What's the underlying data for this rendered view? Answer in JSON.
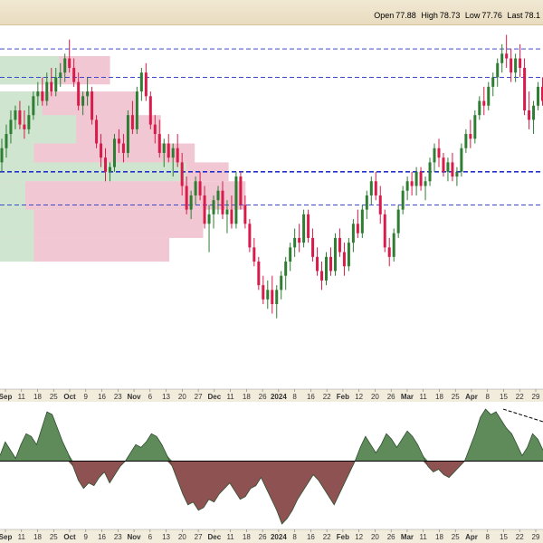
{
  "ohlc": {
    "open_label": "Open",
    "open": "77.88",
    "high_label": "High",
    "high": "78.73",
    "low_label": "Low",
    "low": "77.76",
    "last_label": "Last",
    "last": "78.1"
  },
  "colors": {
    "up": "#2e7d32",
    "down": "#d81b4a",
    "vbp_up": "#cfe5cf",
    "vbp_down": "#f1c7d3",
    "hline": "#2233cc",
    "osc_pos": "#5f8b5b",
    "osc_neg": "#8e5252",
    "header_bg": "#eee3c8"
  },
  "chart_data": [
    {
      "type": "candlestick",
      "title": "",
      "y_range": [
        73.5,
        81.2
      ],
      "x_tick_labels": [
        "Sep",
        "11",
        "18",
        "25",
        "Oct",
        "9",
        "16",
        "23",
        "Nov",
        "6",
        "13",
        "20",
        "27",
        "Dec",
        "11",
        "18",
        "26",
        "2024",
        "8",
        "16",
        "22",
        "Feb",
        "12",
        "20",
        "26",
        "Mar",
        "11",
        "18",
        "25",
        "Apr",
        "8",
        "15",
        "22",
        "29"
      ],
      "horizontal_lines": [
        80.7,
        80.1,
        78.1,
        77.4
      ],
      "volume_by_price": [
        {
          "price_low": 79.95,
          "price_high": 80.55,
          "up": 0.7,
          "down": 1.3
        },
        {
          "price_low": 79.2,
          "price_high": 79.8,
          "up": 0.5,
          "down": 1.6
        },
        {
          "price_low": 78.7,
          "price_high": 79.3,
          "up": 0.9,
          "down": 1.9
        },
        {
          "price_low": 78.2,
          "price_high": 78.7,
          "up": 0.4,
          "down": 2.3
        },
        {
          "price_low": 77.9,
          "price_high": 78.3,
          "up": 2.2,
          "down": 2.7
        },
        {
          "price_low": 77.3,
          "price_high": 77.9,
          "up": 0.3,
          "down": 2.9
        },
        {
          "price_low": 76.7,
          "price_high": 77.3,
          "up": 0.4,
          "down": 2.4
        },
        {
          "price_low": 76.2,
          "price_high": 76.7,
          "up": 0.4,
          "down": 2.0
        }
      ],
      "candles": [
        {
          "o": 78.3,
          "h": 78.8,
          "l": 78.1,
          "c": 78.6
        },
        {
          "o": 78.6,
          "h": 79.1,
          "l": 78.4,
          "c": 78.9
        },
        {
          "o": 78.9,
          "h": 79.4,
          "l": 78.7,
          "c": 79.2
        },
        {
          "o": 79.2,
          "h": 79.5,
          "l": 79.0,
          "c": 79.4
        },
        {
          "o": 79.4,
          "h": 79.6,
          "l": 79.0,
          "c": 79.1
        },
        {
          "o": 79.1,
          "h": 79.4,
          "l": 78.8,
          "c": 79.0
        },
        {
          "o": 79.0,
          "h": 79.5,
          "l": 78.9,
          "c": 79.3
        },
        {
          "o": 79.3,
          "h": 79.8,
          "l": 79.2,
          "c": 79.7
        },
        {
          "o": 79.7,
          "h": 80.0,
          "l": 79.5,
          "c": 79.8
        },
        {
          "o": 79.8,
          "h": 80.1,
          "l": 79.5,
          "c": 79.6
        },
        {
          "o": 79.6,
          "h": 80.2,
          "l": 79.5,
          "c": 80.0
        },
        {
          "o": 80.0,
          "h": 80.3,
          "l": 79.7,
          "c": 79.8
        },
        {
          "o": 79.8,
          "h": 80.3,
          "l": 79.7,
          "c": 80.1
        },
        {
          "o": 80.1,
          "h": 80.4,
          "l": 79.9,
          "c": 80.2
        },
        {
          "o": 80.2,
          "h": 80.6,
          "l": 80.0,
          "c": 80.5
        },
        {
          "o": 80.5,
          "h": 80.9,
          "l": 80.2,
          "c": 80.3
        },
        {
          "o": 80.3,
          "h": 80.5,
          "l": 79.9,
          "c": 80.0
        },
        {
          "o": 80.0,
          "h": 80.2,
          "l": 79.4,
          "c": 79.5
        },
        {
          "o": 79.5,
          "h": 79.8,
          "l": 79.3,
          "c": 79.7
        },
        {
          "o": 79.7,
          "h": 80.1,
          "l": 79.5,
          "c": 79.8
        },
        {
          "o": 79.8,
          "h": 79.9,
          "l": 79.1,
          "c": 79.2
        },
        {
          "o": 79.2,
          "h": 79.3,
          "l": 78.6,
          "c": 78.7
        },
        {
          "o": 78.7,
          "h": 78.9,
          "l": 78.2,
          "c": 78.4
        },
        {
          "o": 78.4,
          "h": 78.6,
          "l": 77.9,
          "c": 78.1
        },
        {
          "o": 78.1,
          "h": 78.3,
          "l": 77.9,
          "c": 78.2
        },
        {
          "o": 78.2,
          "h": 78.9,
          "l": 78.1,
          "c": 78.8
        },
        {
          "o": 78.8,
          "h": 79.0,
          "l": 78.5,
          "c": 78.7
        },
        {
          "o": 78.7,
          "h": 78.9,
          "l": 78.3,
          "c": 78.5
        },
        {
          "o": 78.5,
          "h": 79.4,
          "l": 78.4,
          "c": 79.3
        },
        {
          "o": 79.3,
          "h": 79.6,
          "l": 78.9,
          "c": 79.0
        },
        {
          "o": 79.0,
          "h": 79.9,
          "l": 78.9,
          "c": 79.8
        },
        {
          "o": 79.8,
          "h": 80.3,
          "l": 79.6,
          "c": 80.2
        },
        {
          "o": 80.2,
          "h": 80.4,
          "l": 79.6,
          "c": 79.7
        },
        {
          "o": 79.7,
          "h": 79.8,
          "l": 79.0,
          "c": 79.1
        },
        {
          "o": 79.1,
          "h": 79.3,
          "l": 78.7,
          "c": 78.9
        },
        {
          "o": 78.9,
          "h": 79.2,
          "l": 78.4,
          "c": 78.5
        },
        {
          "o": 78.5,
          "h": 78.8,
          "l": 78.2,
          "c": 78.7
        },
        {
          "o": 78.7,
          "h": 78.9,
          "l": 78.3,
          "c": 78.4
        },
        {
          "o": 78.4,
          "h": 78.7,
          "l": 78.0,
          "c": 78.6
        },
        {
          "o": 78.6,
          "h": 78.9,
          "l": 78.2,
          "c": 78.3
        },
        {
          "o": 78.3,
          "h": 78.5,
          "l": 77.6,
          "c": 77.8
        },
        {
          "o": 77.8,
          "h": 78.0,
          "l": 77.2,
          "c": 77.3
        },
        {
          "o": 77.3,
          "h": 77.7,
          "l": 77.1,
          "c": 77.6
        },
        {
          "o": 77.6,
          "h": 78.0,
          "l": 77.4,
          "c": 77.9
        },
        {
          "o": 77.9,
          "h": 78.1,
          "l": 77.5,
          "c": 77.6
        },
        {
          "o": 77.6,
          "h": 77.8,
          "l": 76.9,
          "c": 77.0
        },
        {
          "o": 77.0,
          "h": 77.4,
          "l": 76.4,
          "c": 77.2
        },
        {
          "o": 77.2,
          "h": 77.6,
          "l": 76.9,
          "c": 77.5
        },
        {
          "o": 77.5,
          "h": 77.8,
          "l": 77.2,
          "c": 77.7
        },
        {
          "o": 77.7,
          "h": 77.9,
          "l": 77.1,
          "c": 77.2
        },
        {
          "o": 77.2,
          "h": 77.5,
          "l": 76.8,
          "c": 77.3
        },
        {
          "o": 77.3,
          "h": 77.6,
          "l": 76.9,
          "c": 77.0
        },
        {
          "o": 77.0,
          "h": 78.1,
          "l": 76.9,
          "c": 78.0
        },
        {
          "o": 78.0,
          "h": 78.1,
          "l": 77.3,
          "c": 77.4
        },
        {
          "o": 77.4,
          "h": 77.6,
          "l": 76.9,
          "c": 77.0
        },
        {
          "o": 77.0,
          "h": 77.1,
          "l": 76.4,
          "c": 76.5
        },
        {
          "o": 76.5,
          "h": 76.7,
          "l": 76.1,
          "c": 76.2
        },
        {
          "o": 76.2,
          "h": 76.3,
          "l": 75.6,
          "c": 75.7
        },
        {
          "o": 75.7,
          "h": 75.9,
          "l": 75.3,
          "c": 75.4
        },
        {
          "o": 75.4,
          "h": 75.8,
          "l": 75.2,
          "c": 75.6
        },
        {
          "o": 75.6,
          "h": 75.9,
          "l": 75.1,
          "c": 75.3
        },
        {
          "o": 75.3,
          "h": 75.7,
          "l": 75.0,
          "c": 75.6
        },
        {
          "o": 75.6,
          "h": 76.0,
          "l": 75.4,
          "c": 75.9
        },
        {
          "o": 75.9,
          "h": 76.3,
          "l": 75.6,
          "c": 76.2
        },
        {
          "o": 76.2,
          "h": 76.6,
          "l": 76.0,
          "c": 76.5
        },
        {
          "o": 76.5,
          "h": 76.9,
          "l": 76.3,
          "c": 76.7
        },
        {
          "o": 76.7,
          "h": 77.0,
          "l": 76.4,
          "c": 76.6
        },
        {
          "o": 76.6,
          "h": 77.3,
          "l": 76.5,
          "c": 77.2
        },
        {
          "o": 77.2,
          "h": 77.3,
          "l": 76.6,
          "c": 76.7
        },
        {
          "o": 76.7,
          "h": 76.9,
          "l": 76.2,
          "c": 76.3
        },
        {
          "o": 76.3,
          "h": 76.5,
          "l": 75.9,
          "c": 76.0
        },
        {
          "o": 76.0,
          "h": 76.2,
          "l": 75.6,
          "c": 75.8
        },
        {
          "o": 75.8,
          "h": 76.4,
          "l": 75.7,
          "c": 76.3
        },
        {
          "o": 76.3,
          "h": 76.5,
          "l": 75.9,
          "c": 76.0
        },
        {
          "o": 76.0,
          "h": 76.8,
          "l": 75.9,
          "c": 76.7
        },
        {
          "o": 76.7,
          "h": 76.9,
          "l": 76.3,
          "c": 76.4
        },
        {
          "o": 76.4,
          "h": 76.6,
          "l": 75.9,
          "c": 76.1
        },
        {
          "o": 76.1,
          "h": 76.7,
          "l": 76.0,
          "c": 76.6
        },
        {
          "o": 76.6,
          "h": 77.1,
          "l": 76.4,
          "c": 77.0
        },
        {
          "o": 77.0,
          "h": 77.3,
          "l": 76.7,
          "c": 76.8
        },
        {
          "o": 76.8,
          "h": 77.4,
          "l": 76.7,
          "c": 77.3
        },
        {
          "o": 77.3,
          "h": 77.7,
          "l": 77.1,
          "c": 77.6
        },
        {
          "o": 77.6,
          "h": 78.0,
          "l": 77.4,
          "c": 77.9
        },
        {
          "o": 77.9,
          "h": 78.1,
          "l": 77.5,
          "c": 77.6
        },
        {
          "o": 77.6,
          "h": 77.8,
          "l": 77.0,
          "c": 77.2
        },
        {
          "o": 77.2,
          "h": 77.3,
          "l": 76.4,
          "c": 76.5
        },
        {
          "o": 76.5,
          "h": 76.7,
          "l": 76.1,
          "c": 76.3
        },
        {
          "o": 76.3,
          "h": 76.9,
          "l": 76.2,
          "c": 76.8
        },
        {
          "o": 76.8,
          "h": 77.4,
          "l": 76.7,
          "c": 77.3
        },
        {
          "o": 77.3,
          "h": 77.8,
          "l": 77.2,
          "c": 77.7
        },
        {
          "o": 77.7,
          "h": 78.0,
          "l": 77.5,
          "c": 77.9
        },
        {
          "o": 77.9,
          "h": 78.1,
          "l": 77.6,
          "c": 77.8
        },
        {
          "o": 77.8,
          "h": 78.2,
          "l": 77.6,
          "c": 78.1
        },
        {
          "o": 78.1,
          "h": 78.2,
          "l": 77.7,
          "c": 77.8
        },
        {
          "o": 77.8,
          "h": 78.0,
          "l": 77.5,
          "c": 77.9
        },
        {
          "o": 77.9,
          "h": 78.4,
          "l": 77.8,
          "c": 78.3
        },
        {
          "o": 78.3,
          "h": 78.7,
          "l": 78.1,
          "c": 78.6
        },
        {
          "o": 78.6,
          "h": 78.8,
          "l": 78.2,
          "c": 78.4
        },
        {
          "o": 78.4,
          "h": 78.5,
          "l": 78.0,
          "c": 78.1
        },
        {
          "o": 78.1,
          "h": 78.4,
          "l": 77.9,
          "c": 78.3
        },
        {
          "o": 78.3,
          "h": 78.5,
          "l": 77.9,
          "c": 78.0
        },
        {
          "o": 78.0,
          "h": 78.2,
          "l": 77.8,
          "c": 78.1
        },
        {
          "o": 78.1,
          "h": 78.7,
          "l": 78.0,
          "c": 78.6
        },
        {
          "o": 78.6,
          "h": 79.0,
          "l": 78.5,
          "c": 78.9
        },
        {
          "o": 78.9,
          "h": 79.2,
          "l": 78.6,
          "c": 78.8
        },
        {
          "o": 78.8,
          "h": 79.4,
          "l": 78.7,
          "c": 79.3
        },
        {
          "o": 79.3,
          "h": 79.7,
          "l": 79.2,
          "c": 79.6
        },
        {
          "o": 79.6,
          "h": 79.9,
          "l": 79.3,
          "c": 79.5
        },
        {
          "o": 79.5,
          "h": 80.0,
          "l": 79.4,
          "c": 79.9
        },
        {
          "o": 79.9,
          "h": 80.2,
          "l": 79.7,
          "c": 80.1
        },
        {
          "o": 80.1,
          "h": 80.5,
          "l": 79.9,
          "c": 80.4
        },
        {
          "o": 80.4,
          "h": 80.8,
          "l": 80.2,
          "c": 80.6
        },
        {
          "o": 80.6,
          "h": 81.0,
          "l": 80.3,
          "c": 80.5
        },
        {
          "o": 80.5,
          "h": 80.7,
          "l": 80.0,
          "c": 80.2
        },
        {
          "o": 80.2,
          "h": 80.6,
          "l": 80.0,
          "c": 80.5
        },
        {
          "o": 80.5,
          "h": 80.8,
          "l": 80.1,
          "c": 80.3
        },
        {
          "o": 80.3,
          "h": 80.5,
          "l": 79.3,
          "c": 79.4
        },
        {
          "o": 79.4,
          "h": 79.8,
          "l": 79.0,
          "c": 79.2
        },
        {
          "o": 79.2,
          "h": 79.6,
          "l": 78.9,
          "c": 79.5
        },
        {
          "o": 79.5,
          "h": 80.0,
          "l": 79.4,
          "c": 79.9
        },
        {
          "o": 79.9,
          "h": 80.1,
          "l": 79.5,
          "c": 79.6
        }
      ]
    },
    {
      "type": "area",
      "title": "",
      "baseline": 0,
      "y_range": [
        -1.25,
        1.05
      ],
      "series": [
        {
          "values": [
            0.1,
            0.35,
            0.2,
            0.05,
            0.3,
            0.5,
            0.45,
            0.3,
            0.6,
            0.9,
            0.85,
            0.6,
            0.35,
            0.15,
            -0.1,
            -0.35,
            -0.5,
            -0.4,
            -0.45,
            -0.3,
            -0.2,
            -0.4,
            -0.25,
            -0.1,
            0.0,
            0.15,
            0.3,
            0.25,
            0.35,
            0.5,
            0.45,
            0.3,
            0.1,
            -0.1,
            -0.35,
            -0.6,
            -0.8,
            -0.75,
            -0.9,
            -0.85,
            -0.7,
            -0.75,
            -0.6,
            -0.5,
            -0.4,
            -0.55,
            -0.7,
            -0.65,
            -0.5,
            -0.45,
            -0.3,
            -0.5,
            -0.7,
            -0.9,
            -1.15,
            -1.05,
            -0.9,
            -0.7,
            -0.55,
            -0.4,
            -0.25,
            -0.35,
            -0.5,
            -0.65,
            -0.8,
            -0.6,
            -0.4,
            -0.2,
            0.0,
            0.25,
            0.45,
            0.3,
            0.15,
            0.3,
            0.5,
            0.4,
            0.25,
            0.4,
            0.55,
            0.45,
            0.3,
            0.1,
            -0.1,
            -0.2,
            -0.15,
            -0.25,
            -0.3,
            -0.2,
            -0.1,
            0.0,
            0.25,
            0.5,
            0.8,
            0.95,
            0.85,
            0.9,
            0.75,
            0.6,
            0.5,
            0.3,
            0.1,
            0.25,
            0.5,
            0.4,
            0.2
          ]
        }
      ]
    }
  ]
}
